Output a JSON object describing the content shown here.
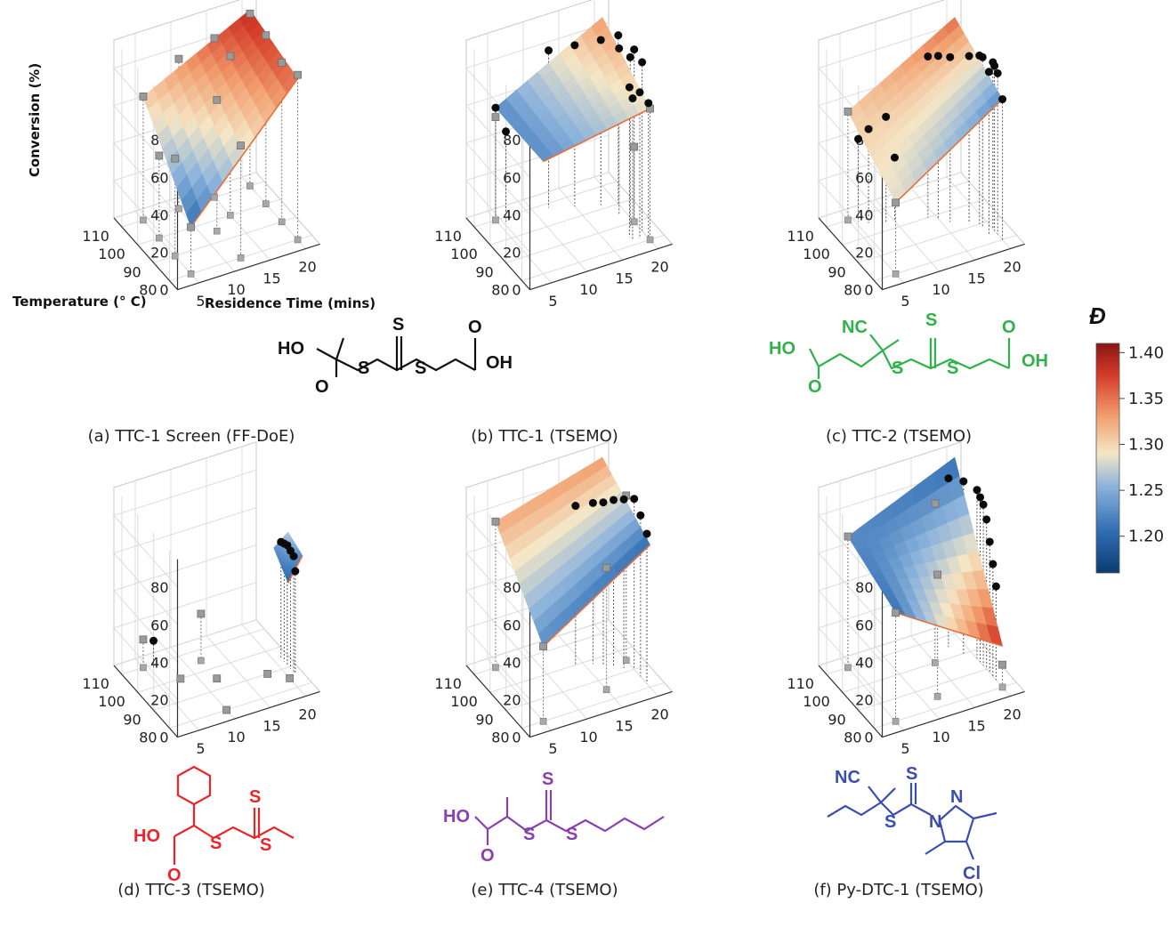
{
  "chart_data": {
    "type": "3d-surface",
    "axes": {
      "zlabel": "Conversion (%)",
      "xlabel": "Temperature (° C)",
      "ylabel": "Residence Time (mins)",
      "zticks": [
        "0",
        "20",
        "40",
        "60",
        "80"
      ],
      "tticks": [
        "80",
        "90",
        "100",
        "110"
      ],
      "rticks": [
        "5",
        "10",
        "15",
        "20"
      ],
      "zlim": [
        0,
        95
      ],
      "tlim": [
        75,
        115
      ],
      "rlim": [
        2,
        22
      ]
    },
    "colorbar": {
      "title": "Đ",
      "ticks": [
        "1.40",
        "1.35",
        "1.30",
        "1.25",
        "1.20"
      ],
      "range": [
        1.16,
        1.41
      ],
      "colors": [
        "#0b3b70",
        "#2f6db3",
        "#8db4dc",
        "#f4e6c6",
        "#f2a070",
        "#d43d2a",
        "#8a1414"
      ]
    },
    "panels": [
      {
        "caption": "(a) TTC-1 Screen (FF-DoE)",
        "show_axis_labels": true,
        "surface": [
          [
            110,
            5,
            66,
            1.3
          ],
          [
            110,
            20,
            94,
            1.38
          ],
          [
            80,
            20,
            86,
            1.35
          ],
          [
            80,
            5,
            25,
            1.2
          ]
        ],
        "grey_points": [
          [
            110,
            5,
            66
          ],
          [
            110,
            10,
            80
          ],
          [
            110,
            15,
            85
          ],
          [
            110,
            20,
            92
          ],
          [
            100,
            5,
            44
          ],
          [
            100,
            15,
            85
          ],
          [
            100,
            20,
            90
          ],
          [
            90,
            5,
            52
          ],
          [
            90,
            20,
            85
          ],
          [
            80,
            5,
            25
          ],
          [
            80,
            12,
            60
          ],
          [
            80,
            20,
            88
          ],
          [
            95,
            12,
            70
          ]
        ],
        "black_points": []
      },
      {
        "caption": "(b) TTC-1 (TSEMO)",
        "show_axis_labels": false,
        "surface": [
          [
            110,
            5,
            60,
            1.22
          ],
          [
            110,
            20,
            90,
            1.33
          ],
          [
            80,
            20,
            70,
            1.28
          ],
          [
            80,
            5,
            60,
            1.22
          ]
        ],
        "grey_points": [
          [
            110,
            5,
            55
          ],
          [
            80,
            20,
            70
          ],
          [
            90,
            20,
            40
          ]
        ],
        "black_points": [
          [
            110,
            5,
            60
          ],
          [
            108,
            6,
            48
          ],
          [
            108,
            12,
            84
          ],
          [
            105,
            15,
            86
          ],
          [
            102,
            18,
            88
          ],
          [
            100,
            20,
            90
          ],
          [
            95,
            19,
            89
          ],
          [
            90,
            20,
            92
          ],
          [
            88,
            19,
            91
          ],
          [
            85,
            20,
            90
          ],
          [
            84,
            18,
            80
          ],
          [
            82,
            18,
            76
          ],
          [
            82,
            19,
            78
          ],
          [
            81,
            20,
            72
          ]
        ]
      },
      {
        "caption": "(c) TTC-2 (TSEMO)",
        "show_axis_labels": false,
        "surface": [
          [
            110,
            5,
            58,
            1.3
          ],
          [
            110,
            20,
            90,
            1.35
          ],
          [
            80,
            20,
            75,
            1.22
          ],
          [
            80,
            5,
            38,
            1.28
          ]
        ],
        "grey_points": [
          [
            110,
            5,
            58
          ],
          [
            80,
            5,
            38
          ]
        ],
        "black_points": [
          [
            108,
            6,
            44
          ],
          [
            106,
            7,
            50
          ],
          [
            104,
            9,
            56
          ],
          [
            103,
            10,
            34
          ],
          [
            100,
            14,
            86
          ],
          [
            98,
            15,
            87
          ],
          [
            95,
            16,
            88
          ],
          [
            92,
            18,
            89
          ],
          [
            90,
            19,
            90
          ],
          [
            88,
            19,
            91
          ],
          [
            86,
            20,
            89
          ],
          [
            85,
            20,
            88
          ],
          [
            84,
            19,
            87
          ],
          [
            83,
            20,
            86
          ],
          [
            80,
            20,
            75
          ]
        ]
      },
      {
        "caption": "(d) TTC-3 (TSEMO)",
        "show_axis_labels": false,
        "surface": [
          [
            95,
            20,
            60,
            1.22
          ],
          [
            95,
            22,
            66,
            1.26
          ],
          [
            86,
            22,
            62,
            1.22
          ],
          [
            86,
            20,
            50,
            1.2
          ]
        ],
        "grey_points": [
          [
            110,
            5,
            15
          ],
          [
            100,
            8,
            0
          ],
          [
            95,
            12,
            0
          ],
          [
            90,
            18,
            0
          ],
          [
            85,
            20,
            0
          ],
          [
            80,
            10,
            0
          ],
          [
            105,
            12,
            25
          ]
        ],
        "black_points": [
          [
            108,
            6,
            15
          ],
          [
            95,
            21,
            62
          ],
          [
            93,
            21,
            63
          ],
          [
            91,
            21,
            64
          ],
          [
            89,
            21,
            63
          ],
          [
            87,
            21,
            62
          ],
          [
            86,
            21,
            55
          ]
        ]
      },
      {
        "caption": "(e) TTC-4 (TSEMO)",
        "show_axis_labels": false,
        "surface": [
          [
            110,
            5,
            78,
            1.32
          ],
          [
            110,
            20,
            94,
            1.33
          ],
          [
            80,
            20,
            76,
            1.2
          ],
          [
            80,
            5,
            40,
            1.22
          ]
        ],
        "grey_points": [
          [
            110,
            5,
            78
          ],
          [
            80,
            5,
            40
          ],
          [
            85,
            15,
            65
          ],
          [
            95,
            20,
            88
          ]
        ],
        "black_points": [
          [
            100,
            14,
            85
          ],
          [
            98,
            16,
            86
          ],
          [
            96,
            17,
            87
          ],
          [
            94,
            18,
            89
          ],
          [
            92,
            19,
            90
          ],
          [
            90,
            20,
            91
          ],
          [
            86,
            20,
            86
          ],
          [
            82,
            20,
            80
          ]
        ]
      },
      {
        "caption": "(f) Py-DTC-1 (TSEMO)",
        "show_axis_labels": false,
        "surface": [
          [
            110,
            5,
            70,
            1.22
          ],
          [
            110,
            20,
            94,
            1.2
          ],
          [
            80,
            20,
            22,
            1.38
          ],
          [
            80,
            5,
            58,
            1.2
          ]
        ],
        "grey_points": [
          [
            110,
            5,
            70
          ],
          [
            80,
            5,
            58
          ],
          [
            85,
            12,
            65
          ],
          [
            80,
            20,
            12
          ],
          [
            100,
            15,
            85
          ]
        ],
        "black_points": [
          [
            105,
            18,
            90
          ],
          [
            100,
            19,
            92
          ],
          [
            96,
            20,
            90
          ],
          [
            92,
            20,
            86
          ],
          [
            90,
            20,
            80
          ],
          [
            88,
            20,
            70
          ],
          [
            86,
            20,
            60
          ],
          [
            84,
            20,
            50
          ],
          [
            94,
            20,
            88
          ]
        ]
      }
    ]
  },
  "structures": {
    "ttc1": {
      "atoms": [
        "HO",
        "O",
        "S",
        "S",
        "S",
        "O",
        "OH"
      ]
    },
    "ttc2": {
      "atoms": [
        "NC",
        "S",
        "HO",
        "O",
        "S",
        "S",
        "O",
        "OH"
      ]
    },
    "ttc3": {
      "atoms": [
        "HO",
        "O",
        "S",
        "S",
        "S"
      ]
    },
    "ttc4": {
      "atoms": [
        "HO",
        "O",
        "S",
        "S",
        "S"
      ]
    },
    "pydtc1": {
      "atoms": [
        "NC",
        "S",
        "S",
        "N",
        "N",
        "Cl"
      ]
    }
  }
}
